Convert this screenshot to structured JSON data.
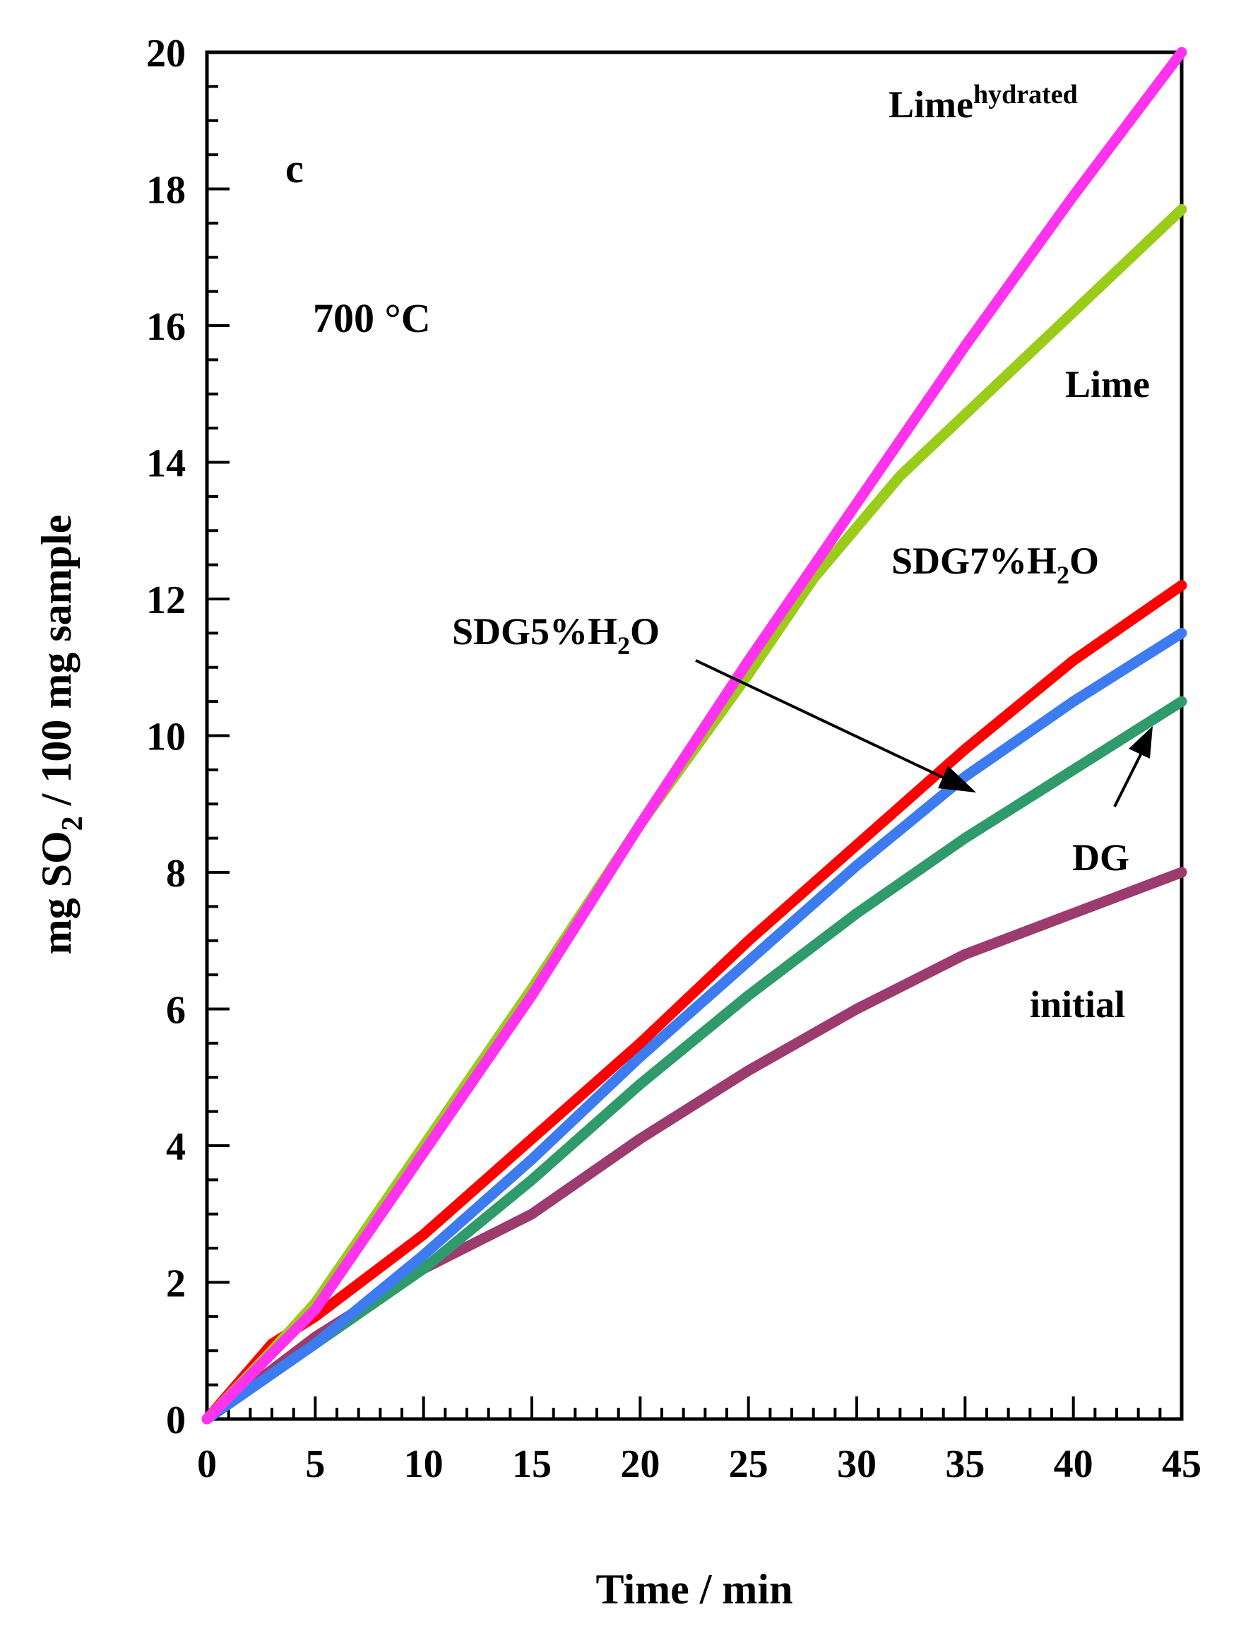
{
  "chart_data": {
    "type": "line",
    "panel_label": "c",
    "temperature_label": "700 °C",
    "xlabel": "Time / min",
    "ylabel": {
      "prefix": "mg SO",
      "sub": "2",
      "suffix": " / 100 mg sample"
    },
    "xlim": [
      0,
      45
    ],
    "ylim": [
      0,
      20
    ],
    "xticks": [
      0,
      5,
      10,
      15,
      20,
      25,
      30,
      35,
      40,
      45
    ],
    "yticks": [
      0,
      2,
      4,
      6,
      8,
      10,
      12,
      14,
      16,
      18,
      20
    ],
    "series": [
      {
        "name": "initial",
        "color": "#9b3b6e",
        "x": [
          0,
          5,
          10,
          15,
          20,
          25,
          30,
          35,
          40,
          45
        ],
        "y": [
          0,
          1.2,
          2.2,
          3.0,
          4.1,
          5.1,
          6.0,
          6.8,
          7.4,
          8.0
        ]
      },
      {
        "name": "DG",
        "color": "#2f9a6b",
        "x": [
          0,
          5,
          10,
          15,
          20,
          25,
          30,
          35,
          40,
          45
        ],
        "y": [
          0,
          1.1,
          2.2,
          3.5,
          4.9,
          6.2,
          7.4,
          8.5,
          9.5,
          10.5
        ]
      },
      {
        "name": "SDG5%H2O",
        "color": "#3d7bf0",
        "x": [
          0,
          5,
          10,
          15,
          20,
          25,
          30,
          35,
          40,
          45
        ],
        "y": [
          0,
          1.1,
          2.4,
          3.8,
          5.3,
          6.7,
          8.1,
          9.4,
          10.5,
          11.5
        ]
      },
      {
        "name": "SDG7%H2O",
        "color": "#ff0000",
        "x": [
          0,
          3,
          5,
          10,
          15,
          20,
          25,
          30,
          35,
          40,
          45
        ],
        "y": [
          0,
          1.1,
          1.5,
          2.7,
          4.1,
          5.5,
          7.0,
          8.4,
          9.8,
          11.1,
          12.2
        ]
      },
      {
        "name": "Lime",
        "color": "#9ccc1a",
        "x": [
          0,
          3,
          5,
          10,
          15,
          20,
          25,
          28,
          32,
          36,
          40,
          45
        ],
        "y": [
          0,
          1.0,
          1.7,
          4.0,
          6.3,
          8.7,
          10.9,
          12.3,
          13.8,
          15.0,
          16.2,
          17.7
        ]
      },
      {
        "name": "Lime hydrated",
        "color": "#ff33ee",
        "x": [
          0,
          5,
          10,
          15,
          20,
          25,
          30,
          35,
          40,
          45
        ],
        "y": [
          0,
          1.6,
          3.9,
          6.2,
          8.7,
          11.1,
          13.4,
          15.7,
          17.9,
          20.0
        ]
      }
    ],
    "annotations": {
      "lime_hydrated": {
        "base": "Lime",
        "sup": "hydrated"
      },
      "lime": "Lime",
      "sdg7": {
        "prefix": "SDG7%H",
        "sub": "2",
        "suffix": "O"
      },
      "sdg5": {
        "prefix": "SDG5%H",
        "sub": "2",
        "suffix": "O"
      },
      "dg": "DG",
      "initial": "initial"
    }
  }
}
